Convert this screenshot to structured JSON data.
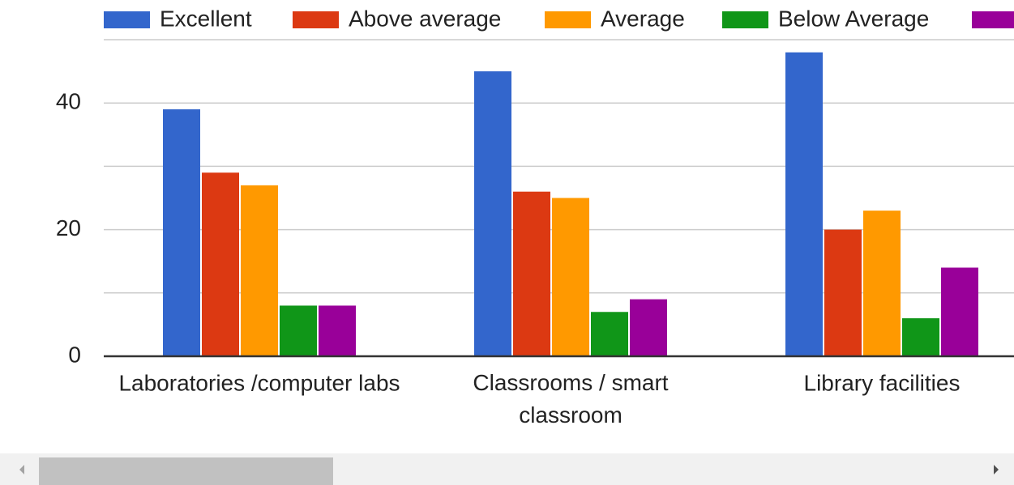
{
  "chart_data": {
    "type": "bar",
    "categories": [
      "Laboratories /computer labs",
      "Classrooms / smart classroom",
      "Library facilities"
    ],
    "series": [
      {
        "name": "Excellent",
        "color": "#3366cc",
        "values": [
          39,
          45,
          48
        ]
      },
      {
        "name": "Above average",
        "color": "#dc3912",
        "values": [
          29,
          26,
          20
        ]
      },
      {
        "name": "Average",
        "color": "#ff9900",
        "values": [
          27,
          25,
          23
        ]
      },
      {
        "name": "Below Average",
        "color": "#109618",
        "values": [
          8,
          7,
          6
        ]
      },
      {
        "color": "#990099",
        "values": [
          8,
          9,
          14
        ]
      }
    ],
    "ylim": [
      0,
      50
    ],
    "yticks": [
      0,
      20,
      40
    ],
    "minor_yticks": [
      10,
      30,
      50
    ],
    "grid": true,
    "legend": "top"
  }
}
